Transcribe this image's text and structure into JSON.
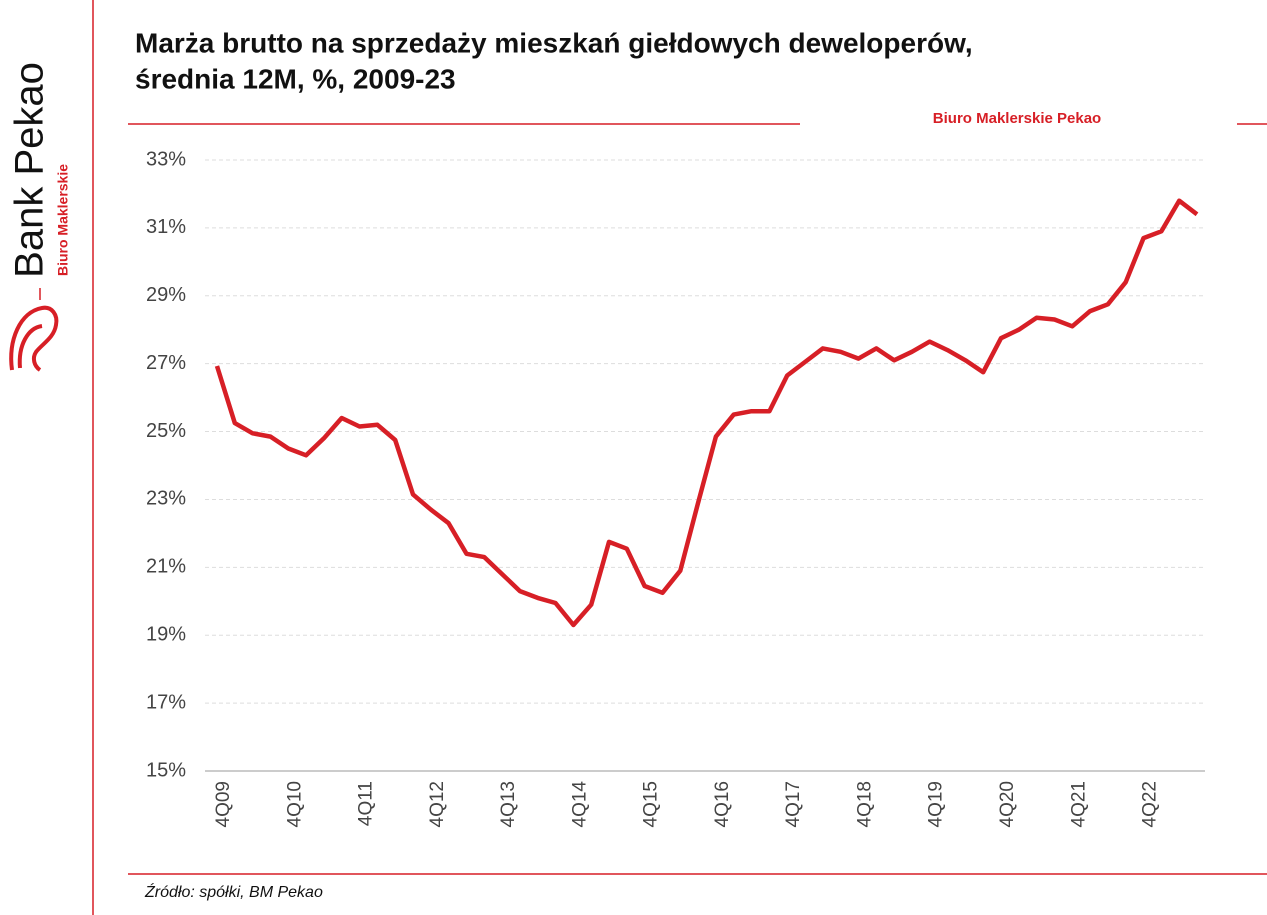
{
  "brand": {
    "name": "Bank Pekao",
    "sub": "Biuro Maklerskie"
  },
  "publisher": "Biuro Maklerskie Pekao",
  "source": "Źródło: spółki, BM Pekao",
  "chart_data": {
    "type": "line",
    "title": [
      "Marża brutto na sprzedaży mieszkań giełdowych deweloperów,",
      "średnia 12M, %, 2009-23"
    ],
    "categories": [
      "4Q09",
      null,
      null,
      null,
      "4Q10",
      null,
      null,
      null,
      "4Q11",
      null,
      null,
      null,
      "4Q12",
      null,
      null,
      null,
      "4Q13",
      null,
      null,
      null,
      "4Q14",
      null,
      null,
      null,
      "4Q15",
      null,
      null,
      null,
      "4Q16",
      null,
      null,
      null,
      "4Q17",
      null,
      null,
      null,
      "4Q18",
      null,
      null,
      null,
      "4Q19",
      null,
      null,
      null,
      "4Q20",
      null,
      null,
      null,
      "4Q21",
      null,
      null,
      null,
      "4Q22",
      null,
      null,
      null
    ],
    "series": [
      {
        "name": "Marża brutto",
        "color": "#d71f26",
        "values": [
          26.93,
          25.25,
          24.95,
          24.85,
          24.5,
          24.3,
          24.8,
          25.4,
          25.15,
          25.2,
          24.75,
          23.15,
          22.7,
          22.3,
          21.4,
          21.3,
          20.8,
          20.3,
          20.1,
          19.95,
          19.3,
          19.9,
          21.75,
          21.55,
          20.45,
          20.25,
          20.9,
          22.9,
          24.85,
          25.5,
          25.6,
          25.6,
          26.65,
          27.05,
          27.45,
          27.35,
          27.15,
          27.45,
          27.1,
          27.35,
          27.65,
          27.4,
          27.1,
          26.75,
          27.75,
          28.0,
          28.35,
          28.3,
          28.1,
          28.55,
          28.75,
          29.4,
          30.7,
          30.9,
          31.8,
          31.4
        ]
      }
    ],
    "ylim": [
      15,
      33
    ],
    "yticks": [
      {
        "value": 15,
        "label": "15%"
      },
      {
        "value": 17,
        "label": "17%"
      },
      {
        "value": 19,
        "label": "19%"
      },
      {
        "value": 21,
        "label": "21%"
      },
      {
        "value": 23,
        "label": "23%"
      },
      {
        "value": 25,
        "label": "25%"
      },
      {
        "value": 27,
        "label": "27%"
      },
      {
        "value": 29,
        "label": "29%"
      },
      {
        "value": 31,
        "label": "31%"
      },
      {
        "value": 33,
        "label": "33%"
      }
    ],
    "grid": true
  }
}
